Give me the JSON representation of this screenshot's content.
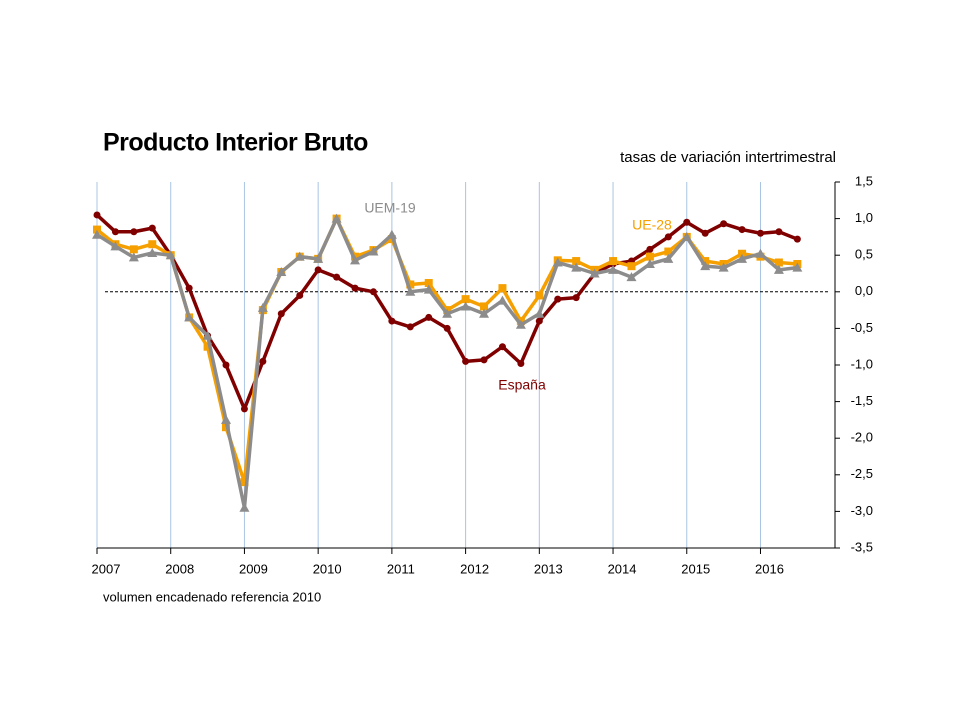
{
  "chart_data": {
    "type": "line",
    "title": "Producto Interior Bruto",
    "subtitle": "tasas de variación intertrimestral",
    "note": "volumen encadenado referencia 2010",
    "categories": [
      "2007",
      null,
      null,
      null,
      "2008",
      null,
      null,
      null,
      "2009",
      null,
      null,
      null,
      "2010",
      null,
      null,
      null,
      "2011",
      null,
      null,
      null,
      "2012",
      null,
      null,
      null,
      "2013",
      null,
      null,
      null,
      "2014",
      null,
      null,
      null,
      "2015",
      null,
      null,
      null,
      "2016",
      null,
      null
    ],
    "series": [
      {
        "name": "España",
        "color": "#800000",
        "marker": "circle",
        "values": [
          1.05,
          0.82,
          0.82,
          0.87,
          0.5,
          0.05,
          -0.6,
          -1.0,
          -1.6,
          -0.95,
          -0.3,
          -0.05,
          0.3,
          0.2,
          0.05,
          0.0,
          -0.4,
          -0.48,
          -0.35,
          -0.5,
          -0.95,
          -0.93,
          -0.75,
          -0.98,
          -0.4,
          -0.1,
          -0.08,
          0.25,
          0.38,
          0.42,
          0.58,
          0.75,
          0.95,
          0.8,
          0.93,
          0.85,
          0.8,
          0.82,
          0.72
        ]
      },
      {
        "name": "UE-28",
        "color": "#f5a000",
        "marker": "square",
        "values": [
          0.85,
          0.65,
          0.58,
          0.65,
          0.5,
          -0.35,
          -0.75,
          -1.85,
          -2.6,
          -0.25,
          0.27,
          0.48,
          0.45,
          1.0,
          0.48,
          0.57,
          0.72,
          0.1,
          0.12,
          -0.25,
          -0.1,
          -0.2,
          0.05,
          -0.4,
          -0.05,
          0.43,
          0.42,
          0.3,
          0.42,
          0.35,
          0.48,
          0.55,
          0.75,
          0.42,
          0.38,
          0.52,
          0.48,
          0.4,
          0.38
        ]
      },
      {
        "name": "UEM-19",
        "color": "#8c8c8c",
        "marker": "triangle",
        "values": [
          0.78,
          0.62,
          0.47,
          0.53,
          0.5,
          -0.35,
          -0.6,
          -1.75,
          -2.95,
          -0.22,
          0.27,
          0.48,
          0.45,
          1.0,
          0.43,
          0.55,
          0.78,
          0.0,
          0.03,
          -0.3,
          -0.2,
          -0.3,
          -0.12,
          -0.45,
          -0.3,
          0.4,
          0.33,
          0.25,
          0.3,
          0.2,
          0.38,
          0.45,
          0.75,
          0.35,
          0.33,
          0.45,
          0.52,
          0.3,
          0.33
        ]
      }
    ],
    "ylim": [
      -3.5,
      1.5
    ],
    "yticks": [
      {
        "value": -3.5,
        "label": "-3,5"
      },
      {
        "value": -3.0,
        "label": "-3,0"
      },
      {
        "value": -2.5,
        "label": "-2,5"
      },
      {
        "value": -2.0,
        "label": "-2,0"
      },
      {
        "value": -1.5,
        "label": "-1,5"
      },
      {
        "value": -1.0,
        "label": "-1,0"
      },
      {
        "value": -0.5,
        "label": "-0,5"
      },
      {
        "value": 0,
        "label": "0,0"
      },
      {
        "value": 0.5,
        "label": "0,5"
      },
      {
        "value": 1.0,
        "label": "1,0"
      },
      {
        "value": 1.5,
        "label": "1,5"
      }
    ],
    "y_axis_side": "right",
    "zero_line": true,
    "grid": "x"
  }
}
